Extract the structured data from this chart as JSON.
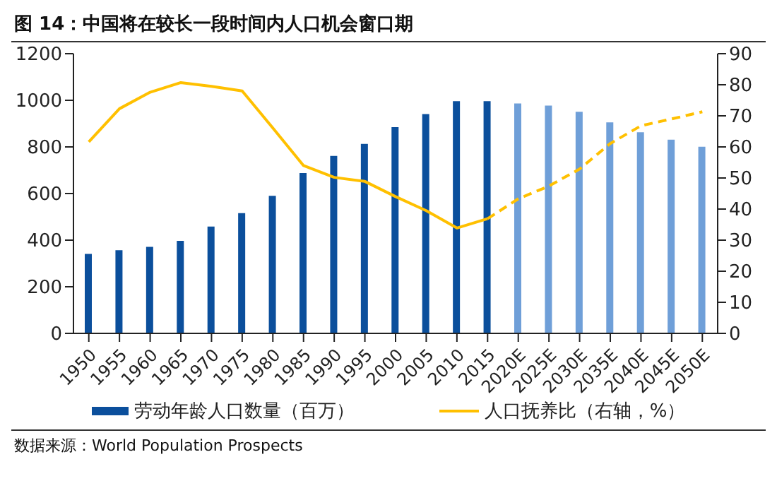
{
  "chart_data": {
    "type": "bar",
    "title": "图 14：中国将在较长一段时间内人口机会窗口期",
    "categories": [
      "1950",
      "1955",
      "1960",
      "1965",
      "1970",
      "1975",
      "1980",
      "1985",
      "1990",
      "1995",
      "2000",
      "2005",
      "2010",
      "2015",
      "2020E",
      "2025E",
      "2030E",
      "2035E",
      "2040E",
      "2045E",
      "2050E"
    ],
    "series": [
      {
        "name": "劳动年龄人口数量（百万）",
        "color": "#0b4f9c",
        "colors": [
          "#0b4f9c",
          "#0b4f9c",
          "#0b4f9c",
          "#0b4f9c",
          "#0b4f9c",
          "#0b4f9c",
          "#0b4f9c",
          "#0b4f9c",
          "#0b4f9c",
          "#0b4f9c",
          "#0b4f9c",
          "#0b4f9c",
          "#0b4f9c",
          "#0b4f9c",
          "#6f9fd8",
          "#6f9fd8",
          "#6f9fd8",
          "#6f9fd8",
          "#6f9fd8",
          "#6f9fd8",
          "#6f9fd8"
        ],
        "values": [
          341,
          357,
          371,
          397,
          458,
          516,
          590,
          688,
          761,
          813,
          885,
          941,
          996,
          996,
          986,
          977,
          951,
          905,
          863,
          831,
          801
        ]
      },
      {
        "type": "line",
        "name": "人口抚养比（右轴，%）",
        "color": "#ffc000",
        "axis": "y2",
        "line_style": "solid",
        "values": [
          61.6,
          72.3,
          77.6,
          80.7,
          79.5,
          78.0,
          66.1,
          54.0,
          50.2,
          48.9,
          44.0,
          39.5,
          33.9,
          36.9,
          null,
          null,
          null,
          null,
          null,
          null,
          null
        ]
      },
      {
        "type": "line",
        "color": "#ffc000",
        "axis": "y2",
        "line_style": "dashed",
        "values": [
          null,
          null,
          null,
          null,
          null,
          null,
          null,
          null,
          null,
          null,
          null,
          null,
          null,
          36.9,
          43.3,
          47.4,
          52.9,
          61.1,
          66.8,
          69.0,
          71.3
        ]
      }
    ],
    "ylim": [
      0,
      1200
    ],
    "yticks": [
      0,
      200,
      400,
      600,
      800,
      1000,
      1200
    ],
    "y2lim": [
      0,
      90
    ],
    "y2ticks": [
      0,
      10,
      20,
      30,
      40,
      50,
      60,
      70,
      80,
      90
    ],
    "grid": false,
    "legend": "bottom",
    "marker": "none",
    "annotations": [
      "数据来源：World Population Prospects"
    ]
  }
}
